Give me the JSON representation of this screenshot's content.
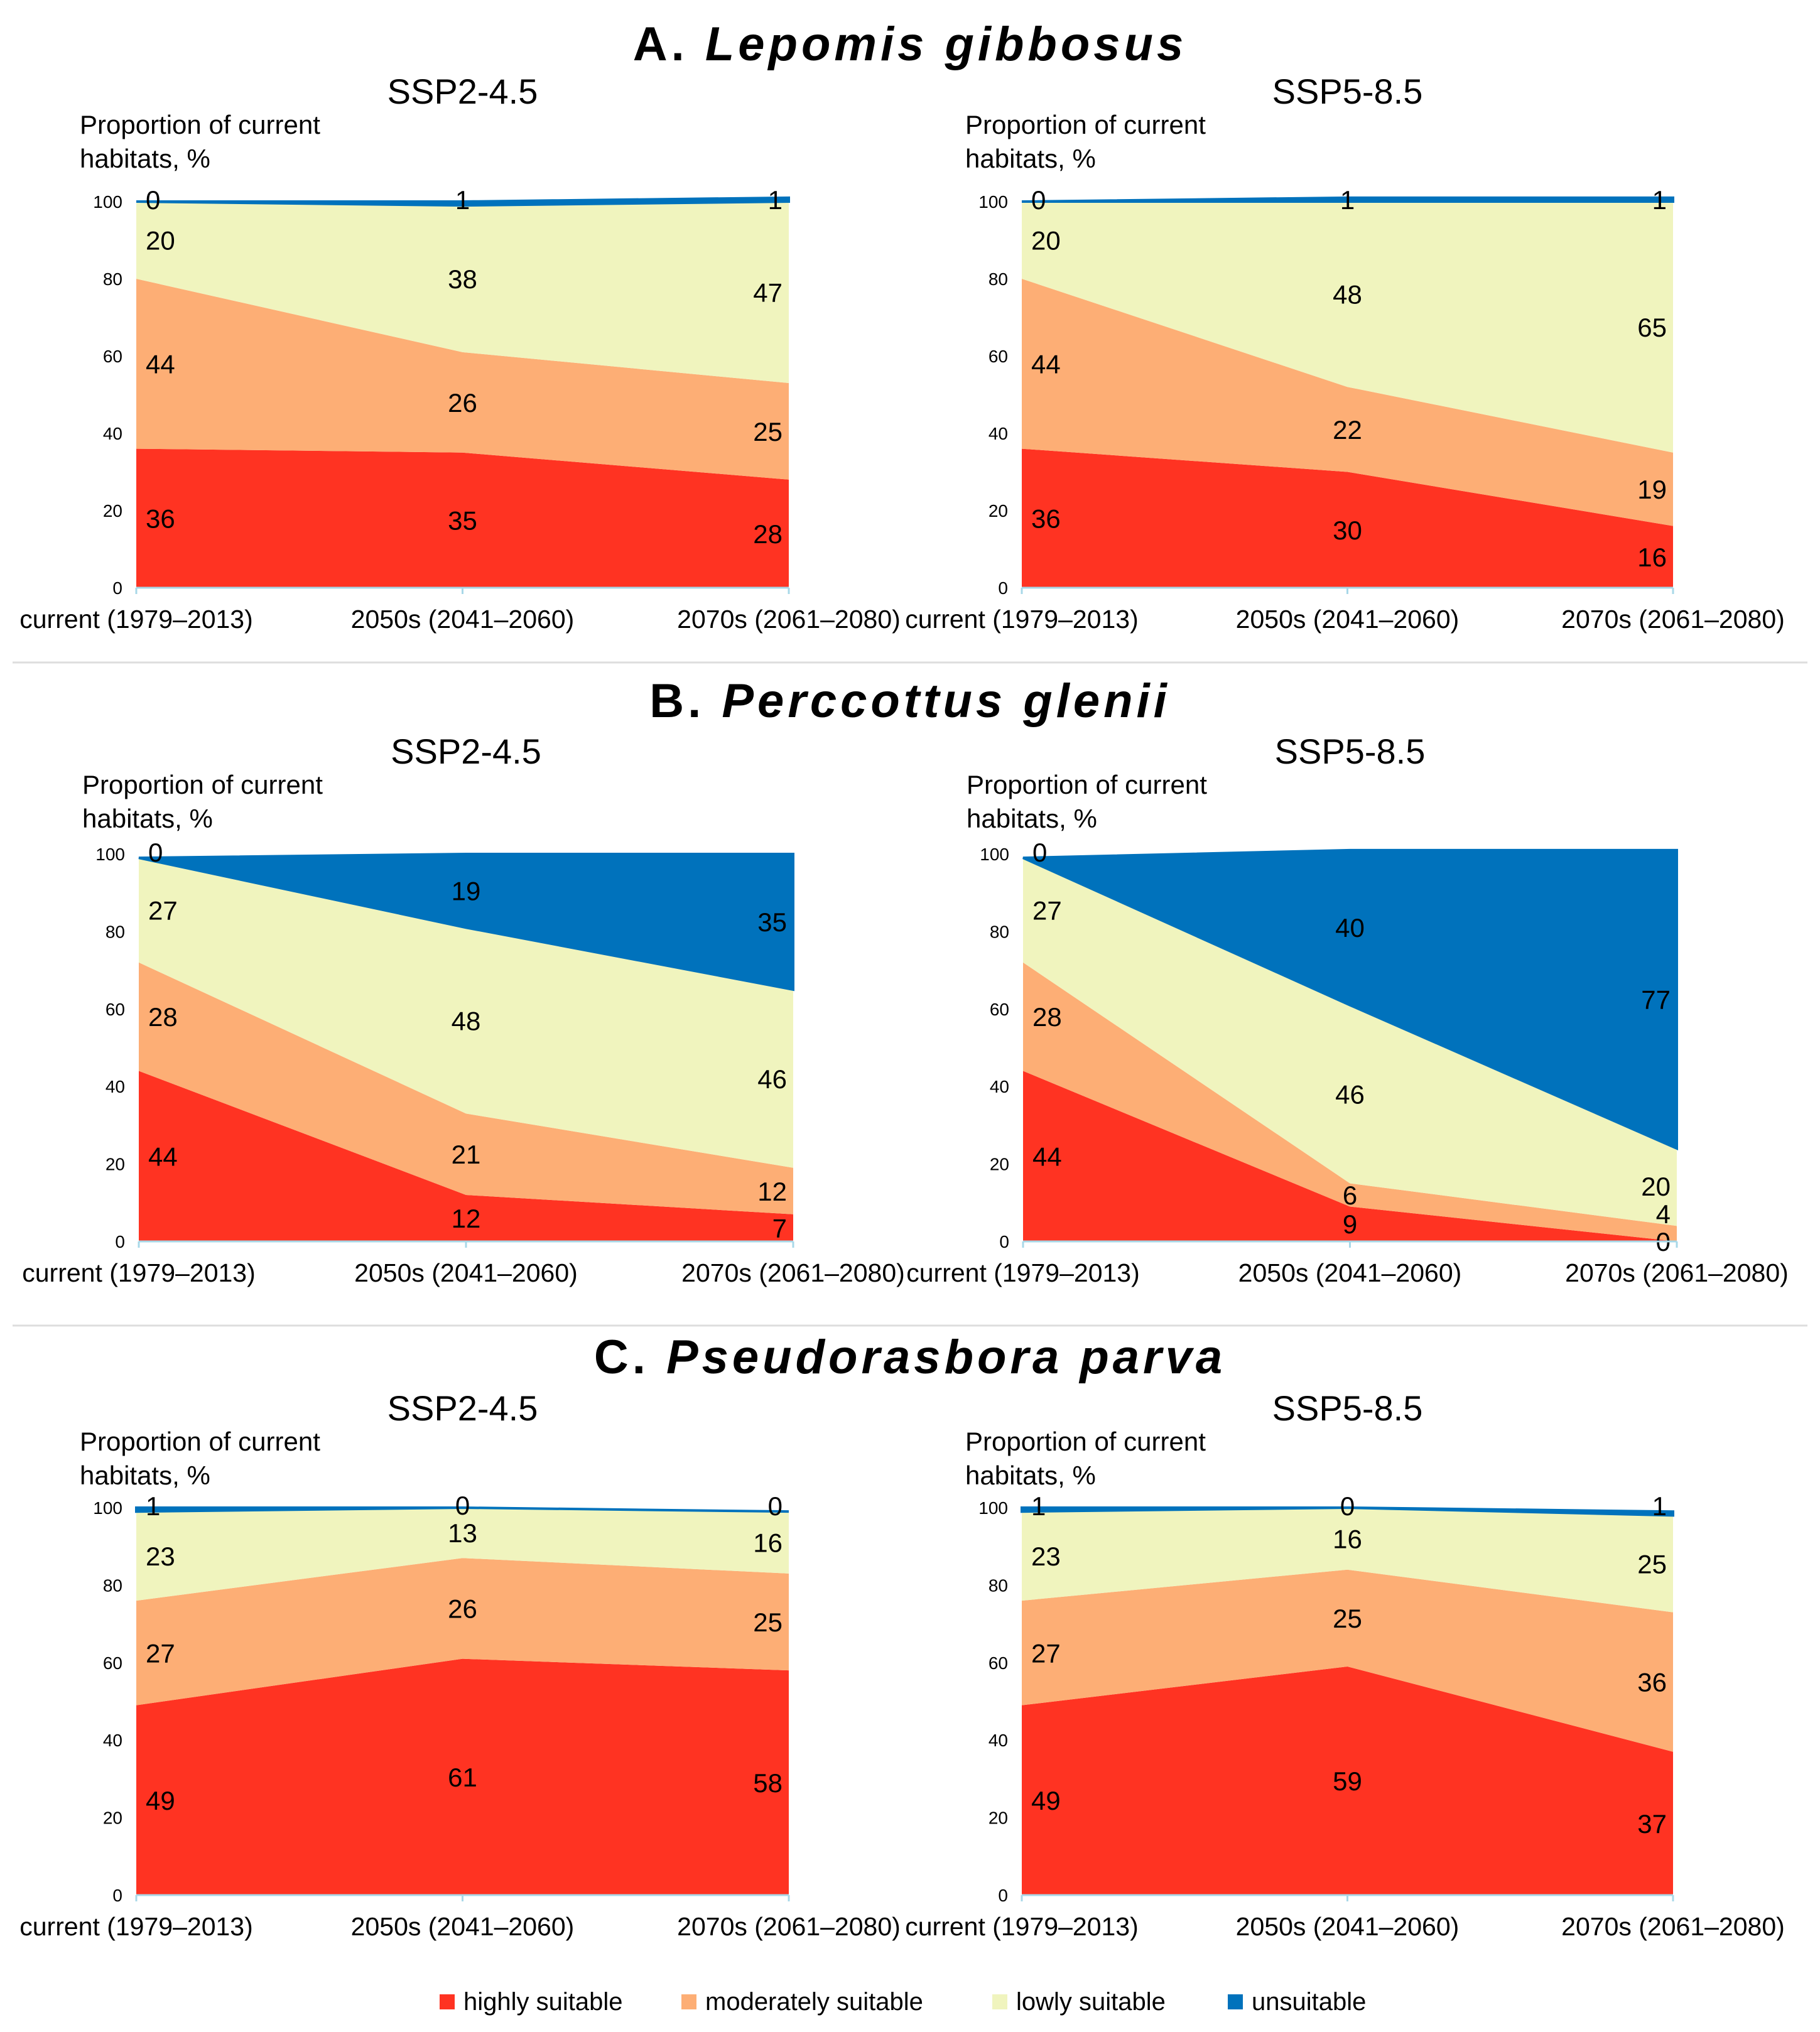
{
  "colors": {
    "highly": "#FF3322",
    "moderately": "#FDAE75",
    "lowly": "#F0F4BE",
    "unsuitable": "#0072BC"
  },
  "legend": [
    {
      "key": "highly",
      "label": "highly suitable"
    },
    {
      "key": "moderately",
      "label": "moderately suitable"
    },
    {
      "key": "lowly",
      "label": "lowly suitable"
    },
    {
      "key": "unsuitable",
      "label": "unsuitable"
    }
  ],
  "panels": [
    {
      "letter": "A.",
      "species": "Lepomis gibbosus"
    },
    {
      "letter": "B.",
      "species": "Perccottus glenii"
    },
    {
      "letter": "C.",
      "species": "Pseudorasbora parva"
    }
  ],
  "chart_data": [
    {
      "type": "area",
      "panel": 0,
      "title": "SSP2-4.5",
      "ylabel": [
        "Proportion of current",
        "habitats, %"
      ],
      "categories": [
        "current (1979–2013)",
        "2050s (2041–2060)",
        "2070s (2061–2080)"
      ],
      "ylim": [
        0,
        100
      ],
      "yticks": [
        0,
        20,
        40,
        60,
        80,
        100
      ],
      "stacked": true,
      "series": [
        {
          "name": "highly suitable",
          "key": "highly",
          "values": [
            36,
            35,
            28
          ]
        },
        {
          "name": "moderately suitable",
          "key": "moderately",
          "values": [
            44,
            26,
            25
          ]
        },
        {
          "name": "lowly suitable",
          "key": "lowly",
          "values": [
            20,
            38,
            47
          ]
        },
        {
          "name": "unsuitable",
          "key": "unsuitable",
          "values": [
            0,
            1,
            1
          ]
        }
      ]
    },
    {
      "type": "area",
      "panel": 0,
      "title": "SSP5-8.5",
      "ylabel": [
        "Proportion of current",
        "habitats, %"
      ],
      "categories": [
        "current (1979–2013)",
        "2050s (2041–2060)",
        "2070s (2061–2080)"
      ],
      "ylim": [
        0,
        100
      ],
      "yticks": [
        0,
        20,
        40,
        60,
        80,
        100
      ],
      "stacked": true,
      "series": [
        {
          "name": "highly suitable",
          "key": "highly",
          "values": [
            36,
            30,
            16
          ]
        },
        {
          "name": "moderately suitable",
          "key": "moderately",
          "values": [
            44,
            22,
            19
          ]
        },
        {
          "name": "lowly suitable",
          "key": "lowly",
          "values": [
            20,
            48,
            65
          ]
        },
        {
          "name": "unsuitable",
          "key": "unsuitable",
          "values": [
            0,
            1,
            1
          ]
        }
      ]
    },
    {
      "type": "area",
      "panel": 1,
      "title": "SSP2-4.5",
      "ylabel": [
        "Proportion of current",
        "habitats, %"
      ],
      "categories": [
        "current (1979–2013)",
        "2050s (2041–2060)",
        "2070s (2061–2080)"
      ],
      "ylim": [
        0,
        100
      ],
      "yticks": [
        0,
        20,
        40,
        60,
        80,
        100
      ],
      "stacked": true,
      "series": [
        {
          "name": "highly suitable",
          "key": "highly",
          "values": [
            44,
            12,
            7
          ]
        },
        {
          "name": "moderately suitable",
          "key": "moderately",
          "values": [
            28,
            21,
            12
          ]
        },
        {
          "name": "lowly suitable",
          "key": "lowly",
          "values": [
            27,
            48,
            46
          ]
        },
        {
          "name": "unsuitable",
          "key": "unsuitable",
          "values": [
            0,
            19,
            35
          ]
        }
      ]
    },
    {
      "type": "area",
      "panel": 1,
      "title": "SSP5-8.5",
      "ylabel": [
        "Proportion of current",
        "habitats, %"
      ],
      "categories": [
        "current (1979–2013)",
        "2050s (2041–2060)",
        "2070s (2061–2080)"
      ],
      "ylim": [
        0,
        100
      ],
      "yticks": [
        0,
        20,
        40,
        60,
        80,
        100
      ],
      "stacked": true,
      "series": [
        {
          "name": "highly suitable",
          "key": "highly",
          "values": [
            44,
            9,
            0
          ]
        },
        {
          "name": "moderately suitable",
          "key": "moderately",
          "values": [
            28,
            6,
            4
          ]
        },
        {
          "name": "lowly suitable",
          "key": "lowly",
          "values": [
            27,
            46,
            20
          ]
        },
        {
          "name": "unsuitable",
          "key": "unsuitable",
          "values": [
            0,
            40,
            77
          ]
        }
      ]
    },
    {
      "type": "area",
      "panel": 2,
      "title": "SSP2-4.5",
      "ylabel": [
        "Proportion of current",
        "habitats, %"
      ],
      "categories": [
        "current (1979–2013)",
        "2050s (2041–2060)",
        "2070s (2061–2080)"
      ],
      "ylim": [
        0,
        100
      ],
      "yticks": [
        0,
        20,
        40,
        60,
        80,
        100
      ],
      "stacked": true,
      "series": [
        {
          "name": "highly suitable",
          "key": "highly",
          "values": [
            49,
            61,
            58
          ]
        },
        {
          "name": "moderately suitable",
          "key": "moderately",
          "values": [
            27,
            26,
            25
          ]
        },
        {
          "name": "lowly suitable",
          "key": "lowly",
          "values": [
            23,
            13,
            16
          ]
        },
        {
          "name": "unsuitable",
          "key": "unsuitable",
          "values": [
            1,
            0,
            0
          ]
        }
      ]
    },
    {
      "type": "area",
      "panel": 2,
      "title": "SSP5-8.5",
      "ylabel": [
        "Proportion of current",
        "habitats, %"
      ],
      "categories": [
        "current (1979–2013)",
        "2050s (2041–2060)",
        "2070s (2061–2080)"
      ],
      "ylim": [
        0,
        100
      ],
      "yticks": [
        0,
        20,
        40,
        60,
        80,
        100
      ],
      "stacked": true,
      "series": [
        {
          "name": "highly suitable",
          "key": "highly",
          "values": [
            49,
            59,
            37
          ]
        },
        {
          "name": "moderately suitable",
          "key": "moderately",
          "values": [
            27,
            25,
            36
          ]
        },
        {
          "name": "lowly suitable",
          "key": "lowly",
          "values": [
            23,
            16,
            25
          ]
        },
        {
          "name": "unsuitable",
          "key": "unsuitable",
          "values": [
            1,
            0,
            1
          ]
        }
      ]
    }
  ]
}
